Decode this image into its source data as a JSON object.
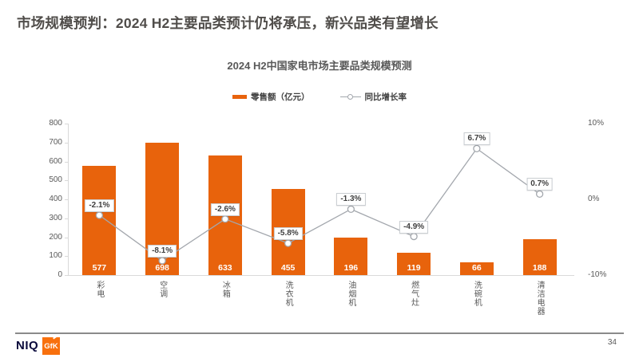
{
  "slide": {
    "title": "市场规模预判：2024 H2主要品类预计仍将承压，新兴品类有望增长",
    "page_number": "34"
  },
  "footer": {
    "niq_logo_text": "NIQ",
    "gfk_logo_text": "GfK"
  },
  "chart_data": {
    "type": "combo",
    "title": "2024 H2中国家电市场主要品类规模预测",
    "categories": [
      "彩电",
      "空调",
      "冰箱",
      "洗衣机",
      "油烟机",
      "燃气灶",
      "洗碗机",
      "清洁电器"
    ],
    "series": [
      {
        "name": "零售额（亿元）",
        "type": "bar",
        "axis": "left",
        "values": [
          577,
          698,
          633,
          455,
          196,
          119,
          66,
          188
        ]
      },
      {
        "name": "同比增长率",
        "type": "line",
        "axis": "right",
        "values": [
          -2.1,
          -8.1,
          -2.6,
          -5.8,
          -1.3,
          -4.9,
          6.7,
          0.7
        ],
        "labels": [
          "-2.1%",
          "-8.1%",
          "-2.6%",
          "-5.8%",
          "-1.3%",
          "-4.9%",
          "6.7%",
          "0.7%"
        ]
      }
    ],
    "left_axis": {
      "min": 0,
      "max": 800,
      "ticks": [
        800,
        700,
        600,
        500,
        400,
        300,
        200,
        100,
        0
      ]
    },
    "right_axis": {
      "min": -10,
      "max": 10,
      "ticks": [
        {
          "label": "10%",
          "value": 10
        },
        {
          "label": "0%",
          "value": 0
        },
        {
          "label": "-10%",
          "value": -10
        }
      ]
    },
    "grid": false,
    "legend_position": "top-center",
    "colors": {
      "bar": "#E8630C",
      "line": "#A3A7AD",
      "marker_fill": "#FFFFFF",
      "growth_label_text": "#3F3F3F",
      "axis_text": "#595959",
      "title_text": "#504D4A"
    }
  }
}
